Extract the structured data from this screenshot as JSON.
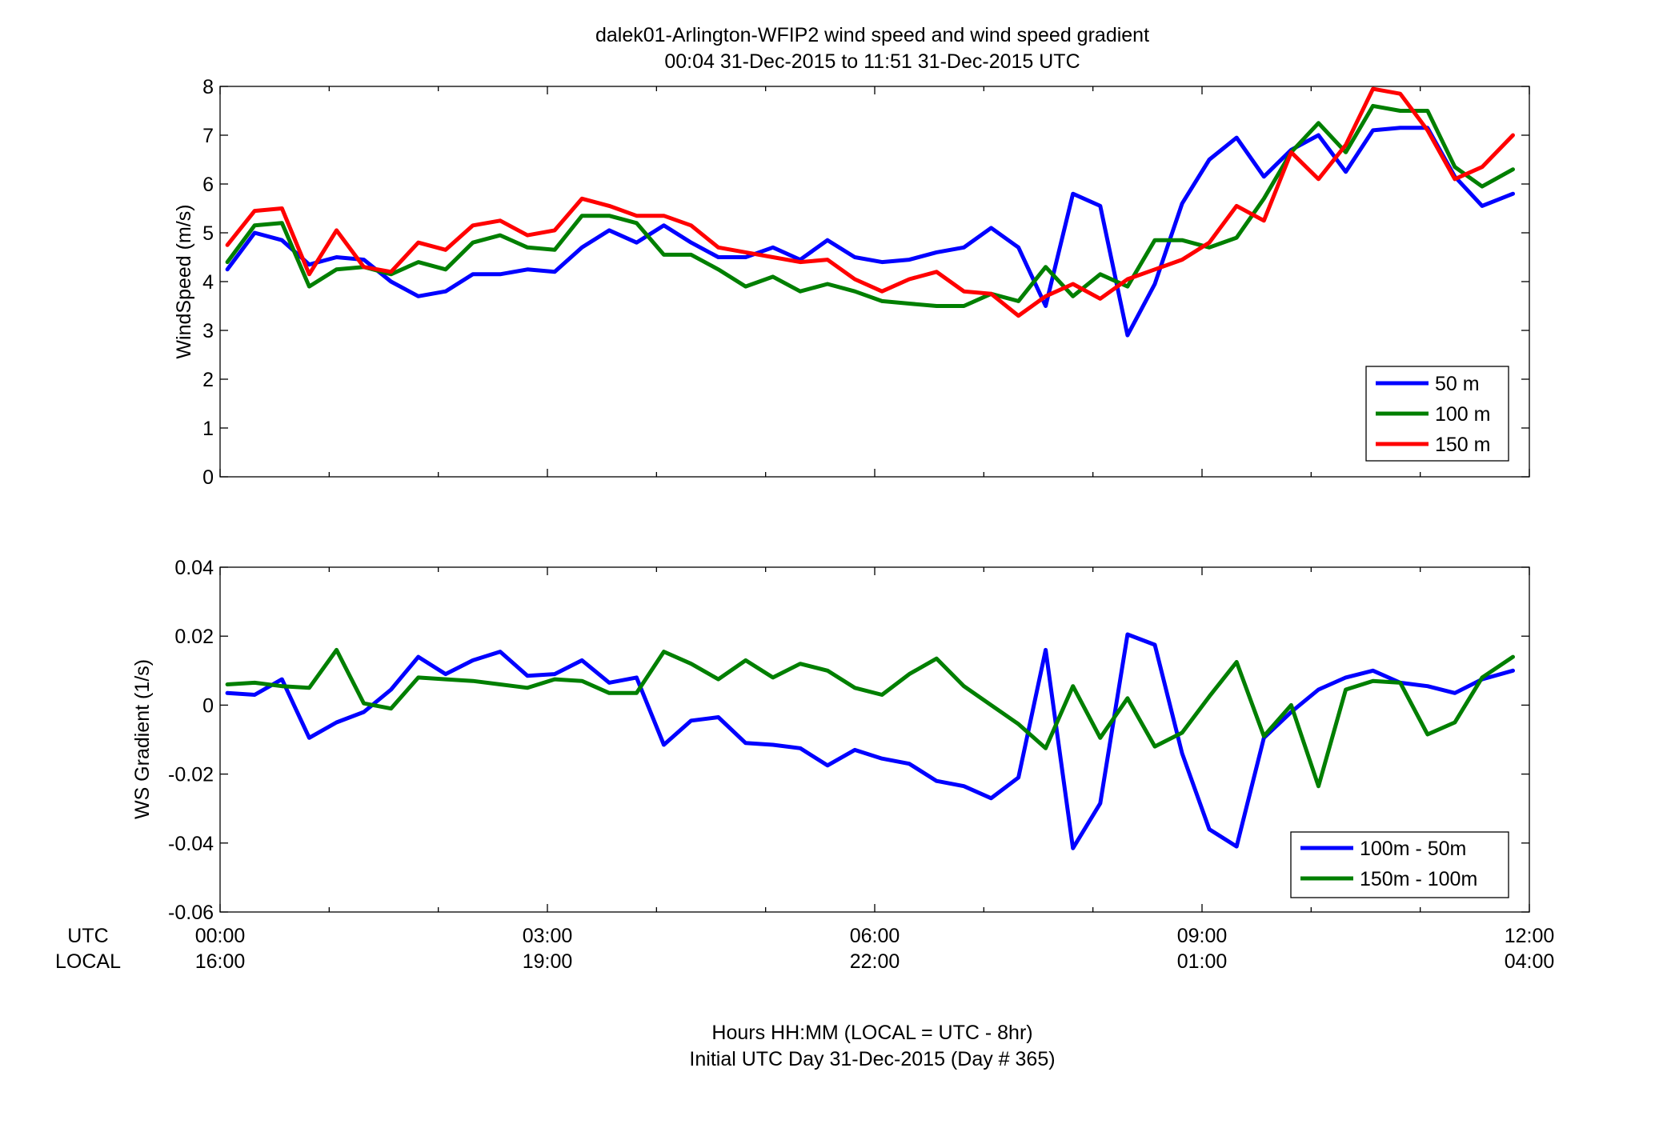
{
  "chart_data": [
    {
      "type": "line",
      "title": [
        "dalek01-Arlington-WFIP2  wind speed and wind speed gradient",
        "00:04 31-Dec-2015 to 11:51 31-Dec-2015  UTC"
      ],
      "xlabel": "",
      "ylabel": "WindSpeed (m/s)",
      "xlim": [
        0,
        12
      ],
      "ylim": [
        0,
        8
      ],
      "yticks": [
        "0",
        "1",
        "2",
        "3",
        "4",
        "5",
        "6",
        "7",
        "8"
      ],
      "legend_position": "bottom-right",
      "x": [
        0.067,
        0.317,
        0.567,
        0.817,
        1.067,
        1.317,
        1.567,
        1.817,
        2.067,
        2.317,
        2.567,
        2.817,
        3.067,
        3.317,
        3.567,
        3.817,
        4.067,
        4.317,
        4.567,
        4.817,
        5.067,
        5.317,
        5.567,
        5.817,
        6.067,
        6.317,
        6.567,
        6.817,
        7.067,
        7.317,
        7.567,
        7.817,
        8.067,
        8.317,
        8.567,
        8.817,
        9.067,
        9.317,
        9.567,
        9.817,
        10.067,
        10.317,
        10.567,
        10.817,
        11.067,
        11.317,
        11.567,
        11.85
      ],
      "series": [
        {
          "name": "50 m",
          "color": "#0000ff",
          "values": [
            4.25,
            5.0,
            4.85,
            4.35,
            4.5,
            4.45,
            4.0,
            3.7,
            3.8,
            4.15,
            4.15,
            4.25,
            4.2,
            4.7,
            5.05,
            4.8,
            5.15,
            4.8,
            4.5,
            4.5,
            4.7,
            4.45,
            4.85,
            4.5,
            4.4,
            4.45,
            4.6,
            4.7,
            5.1,
            4.7,
            3.5,
            5.8,
            5.55,
            2.9,
            3.95,
            5.6,
            6.5,
            6.95,
            6.15,
            6.7,
            7.0,
            6.25,
            7.1,
            7.15,
            7.15,
            6.15,
            5.55,
            5.8
          ]
        },
        {
          "name": "100 m",
          "color": "#007f00",
          "values": [
            4.4,
            5.15,
            5.2,
            3.9,
            4.25,
            4.3,
            4.15,
            4.4,
            4.25,
            4.8,
            4.95,
            4.7,
            4.65,
            5.35,
            5.35,
            5.2,
            4.55,
            4.55,
            4.25,
            3.9,
            4.1,
            3.8,
            3.95,
            3.8,
            3.6,
            3.55,
            3.5,
            3.5,
            3.75,
            3.6,
            4.3,
            3.7,
            4.15,
            3.9,
            4.85,
            4.85,
            4.7,
            4.9,
            5.7,
            6.65,
            7.25,
            6.65,
            7.6,
            7.5,
            7.5,
            6.35,
            5.95,
            6.3
          ]
        },
        {
          "name": "150 m",
          "color": "#ff0000",
          "values": [
            4.75,
            5.45,
            5.5,
            4.15,
            5.05,
            4.3,
            4.2,
            4.8,
            4.65,
            5.15,
            5.25,
            4.95,
            5.05,
            5.7,
            5.55,
            5.35,
            5.35,
            5.15,
            4.7,
            4.6,
            4.5,
            4.4,
            4.45,
            4.05,
            3.8,
            4.05,
            4.2,
            3.8,
            3.75,
            3.3,
            3.7,
            3.95,
            3.65,
            4.05,
            4.25,
            4.45,
            4.8,
            5.55,
            5.25,
            6.65,
            6.1,
            6.8,
            7.95,
            7.85,
            7.1,
            6.1,
            6.35,
            7.0
          ]
        }
      ]
    },
    {
      "type": "line",
      "title": "",
      "xlabel": "Hours HH:MM  (LOCAL = UTC - 8hr)",
      "xlabel2": "Initial UTC Day 31-Dec-2015 (Day # 365)",
      "ylabel": "WS Gradient (1/s)",
      "xlim": [
        0,
        12
      ],
      "ylim": [
        -0.06,
        0.04
      ],
      "yticks": [
        "-0.06",
        "-0.04",
        "-0.02",
        "0",
        "0.02",
        "0.04"
      ],
      "xtick_utc": [
        "00:00",
        "03:00",
        "06:00",
        "09:00",
        "12:00"
      ],
      "xtick_local": [
        "16:00",
        "19:00",
        "22:00",
        "01:00",
        "04:00"
      ],
      "row_labels": [
        "UTC",
        "LOCAL"
      ],
      "legend_position": "bottom-right",
      "x": [
        0.067,
        0.317,
        0.567,
        0.817,
        1.067,
        1.317,
        1.567,
        1.817,
        2.067,
        2.317,
        2.567,
        2.817,
        3.067,
        3.317,
        3.567,
        3.817,
        4.067,
        4.317,
        4.567,
        4.817,
        5.067,
        5.317,
        5.567,
        5.817,
        6.067,
        6.317,
        6.567,
        6.817,
        7.067,
        7.317,
        7.567,
        7.817,
        8.067,
        8.317,
        8.567,
        8.817,
        9.067,
        9.317,
        9.567,
        9.817,
        10.067,
        10.317,
        10.567,
        10.817,
        11.067,
        11.317,
        11.567,
        11.85
      ],
      "series": [
        {
          "name": "100m - 50m",
          "color": "#0000ff",
          "values": [
            0.0035,
            0.003,
            0.0075,
            -0.0095,
            -0.005,
            -0.002,
            0.0045,
            0.014,
            0.009,
            0.013,
            0.0155,
            0.0085,
            0.009,
            0.013,
            0.0065,
            0.008,
            -0.0115,
            -0.0045,
            -0.0035,
            -0.011,
            -0.0115,
            -0.0125,
            -0.0175,
            -0.013,
            -0.0155,
            -0.017,
            -0.022,
            -0.0235,
            -0.027,
            -0.021,
            0.016,
            -0.0415,
            -0.0285,
            0.0205,
            0.0175,
            -0.014,
            -0.036,
            -0.041,
            -0.0095,
            -0.002,
            0.0045,
            0.008,
            0.01,
            0.0065,
            0.0055,
            0.0035,
            0.0075,
            0.01
          ]
        },
        {
          "name": "150m - 100m",
          "color": "#007f00",
          "values": [
            0.006,
            0.0065,
            0.0055,
            0.005,
            0.016,
            0.0005,
            -0.001,
            0.008,
            0.0075,
            0.007,
            0.006,
            0.005,
            0.0075,
            0.007,
            0.0035,
            0.0035,
            0.0155,
            0.012,
            0.0075,
            0.013,
            0.008,
            0.012,
            0.01,
            0.005,
            0.003,
            0.009,
            0.0135,
            0.0055,
            0.0,
            -0.0055,
            -0.0125,
            0.0055,
            -0.0095,
            0.002,
            -0.012,
            -0.008,
            0.0025,
            0.0125,
            -0.009,
            0.0,
            -0.0235,
            0.0045,
            0.007,
            0.0065,
            -0.0085,
            -0.005,
            0.008,
            0.014
          ]
        }
      ]
    }
  ]
}
